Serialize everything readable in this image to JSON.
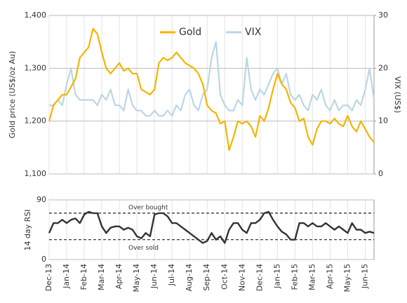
{
  "chart_data": [
    {
      "type": "line",
      "ylabel": "Gold price (US$/oz Au)",
      "y2label": "VIX (US$)",
      "x": [
        0,
        0.25,
        0.5,
        0.75,
        1,
        1.25,
        1.5,
        1.75,
        2,
        2.25,
        2.5,
        2.75,
        3,
        3.25,
        3.5,
        3.75,
        4,
        4.25,
        4.5,
        4.75,
        5,
        5.25,
        5.5,
        5.75,
        6,
        6.25,
        6.5,
        6.75,
        7,
        7.25,
        7.5,
        7.75,
        8,
        8.25,
        8.5,
        8.75,
        9,
        9.25,
        9.5,
        9.75,
        10,
        10.25,
        10.5,
        10.75,
        11,
        11.25,
        11.5,
        11.75,
        12,
        12.25,
        12.5,
        12.75,
        13,
        13.25,
        13.5,
        13.75,
        14,
        14.25,
        14.5,
        14.75,
        15,
        15.25,
        15.5,
        15.75,
        16,
        16.25,
        16.5,
        16.75,
        17,
        17.25,
        17.5,
        17.75,
        18,
        18.25,
        18.5
      ],
      "xlim": [
        0,
        18.5
      ],
      "ylim": [
        1100,
        1400
      ],
      "yticks": [
        {
          "value": 1100,
          "label": "1,100"
        },
        {
          "value": 1200,
          "label": "1,200"
        },
        {
          "value": 1300,
          "label": "1,300"
        },
        {
          "value": 1400,
          "label": "1,400"
        }
      ],
      "y2lim": [
        0,
        30
      ],
      "y2ticks": [
        0,
        10,
        20,
        30
      ],
      "grid": true,
      "legend": "top",
      "series": [
        {
          "name": "Gold",
          "color": "#f5b400",
          "values": [
            1200,
            1230,
            1240,
            1250,
            1250,
            1265,
            1280,
            1320,
            1330,
            1340,
            1375,
            1365,
            1330,
            1300,
            1290,
            1300,
            1310,
            1295,
            1300,
            1290,
            1290,
            1260,
            1255,
            1250,
            1260,
            1310,
            1320,
            1315,
            1320,
            1330,
            1320,
            1310,
            1305,
            1300,
            1290,
            1270,
            1230,
            1220,
            1215,
            1195,
            1200,
            1145,
            1170,
            1200,
            1195,
            1200,
            1190,
            1170,
            1210,
            1200,
            1225,
            1260,
            1290,
            1270,
            1260,
            1235,
            1225,
            1200,
            1205,
            1170,
            1155,
            1185,
            1200,
            1200,
            1195,
            1205,
            1195,
            1190,
            1210,
            1190,
            1180,
            1200,
            1185,
            1170,
            1160
          ]
        },
        {
          "name": "VIX",
          "color": "#bcd6e4",
          "axis": "y2",
          "values": [
            13,
            13,
            14,
            13,
            17,
            20,
            15,
            14,
            14,
            14,
            14,
            13,
            15,
            14,
            16,
            13,
            13,
            12,
            16,
            13,
            12,
            12,
            11,
            11,
            12,
            11,
            11,
            12,
            11,
            13,
            12,
            15,
            16,
            13,
            12,
            15,
            16,
            22,
            25,
            15,
            13,
            12,
            12,
            14,
            13,
            22,
            16,
            14,
            16,
            15,
            17,
            19,
            20,
            17,
            19,
            15,
            14,
            15,
            13,
            12,
            15,
            14,
            16,
            13,
            12,
            14,
            12,
            13,
            13,
            12,
            14,
            13,
            16,
            20,
            14
          ]
        }
      ]
    },
    {
      "type": "line",
      "ylabel": "14 day RSI",
      "x": [
        0,
        0.25,
        0.5,
        0.75,
        1,
        1.25,
        1.5,
        1.75,
        2,
        2.25,
        2.5,
        2.75,
        3,
        3.25,
        3.5,
        3.75,
        4,
        4.25,
        4.5,
        4.75,
        5,
        5.25,
        5.5,
        5.75,
        6,
        6.25,
        6.5,
        6.75,
        7,
        7.25,
        7.5,
        7.75,
        8,
        8.25,
        8.5,
        8.75,
        9,
        9.25,
        9.5,
        9.75,
        10,
        10.25,
        10.5,
        10.75,
        11,
        11.25,
        11.5,
        11.75,
        12,
        12.25,
        12.5,
        12.75,
        13,
        13.25,
        13.5,
        13.75,
        14,
        14.25,
        14.5,
        14.75,
        15,
        15.25,
        15.5,
        15.75,
        16,
        16.25,
        16.5,
        16.75,
        17,
        17.25,
        17.5,
        17.75,
        18,
        18.25,
        18.5
      ],
      "xlim": [
        0,
        18.5
      ],
      "xticks": [
        {
          "value": 0,
          "label": "Dec-13"
        },
        {
          "value": 1,
          "label": "Jan-14"
        },
        {
          "value": 2,
          "label": "Feb-14"
        },
        {
          "value": 3,
          "label": "Mar-14"
        },
        {
          "value": 4,
          "label": "Apr-14"
        },
        {
          "value": 5,
          "label": "May-14"
        },
        {
          "value": 6,
          "label": "Jun-14"
        },
        {
          "value": 7,
          "label": "Jul-14"
        },
        {
          "value": 8,
          "label": "Aug-14"
        },
        {
          "value": 9,
          "label": "Sep-14"
        },
        {
          "value": 10,
          "label": "Oct-14"
        },
        {
          "value": 11,
          "label": "Nov-14"
        },
        {
          "value": 12,
          "label": "Dec-14"
        },
        {
          "value": 13,
          "label": "Jan-15"
        },
        {
          "value": 14,
          "label": "Feb-15"
        },
        {
          "value": 15,
          "label": "Mar-15"
        },
        {
          "value": 16,
          "label": "Apr-15"
        },
        {
          "value": 17,
          "label": "May-15"
        },
        {
          "value": 18,
          "label": "Jun-15"
        }
      ],
      "ylim": [
        0,
        90
      ],
      "yticks": [
        0,
        90
      ],
      "hlines": [
        {
          "value": 70,
          "label": "Over bought"
        },
        {
          "value": 30,
          "label": "Over sold"
        }
      ],
      "series": [
        {
          "color": "#333333",
          "values": [
            40,
            55,
            55,
            60,
            55,
            60,
            62,
            55,
            68,
            72,
            70,
            70,
            50,
            40,
            48,
            50,
            50,
            45,
            48,
            45,
            35,
            32,
            40,
            35,
            68,
            70,
            70,
            65,
            55,
            55,
            50,
            45,
            40,
            35,
            30,
            25,
            28,
            40,
            30,
            35,
            25,
            45,
            55,
            55,
            45,
            40,
            55,
            55,
            60,
            70,
            72,
            60,
            50,
            42,
            38,
            30,
            30,
            55,
            55,
            50,
            55,
            50,
            50,
            55,
            50,
            45,
            50,
            45,
            40,
            55,
            45,
            45,
            40,
            42,
            40
          ]
        }
      ]
    }
  ]
}
